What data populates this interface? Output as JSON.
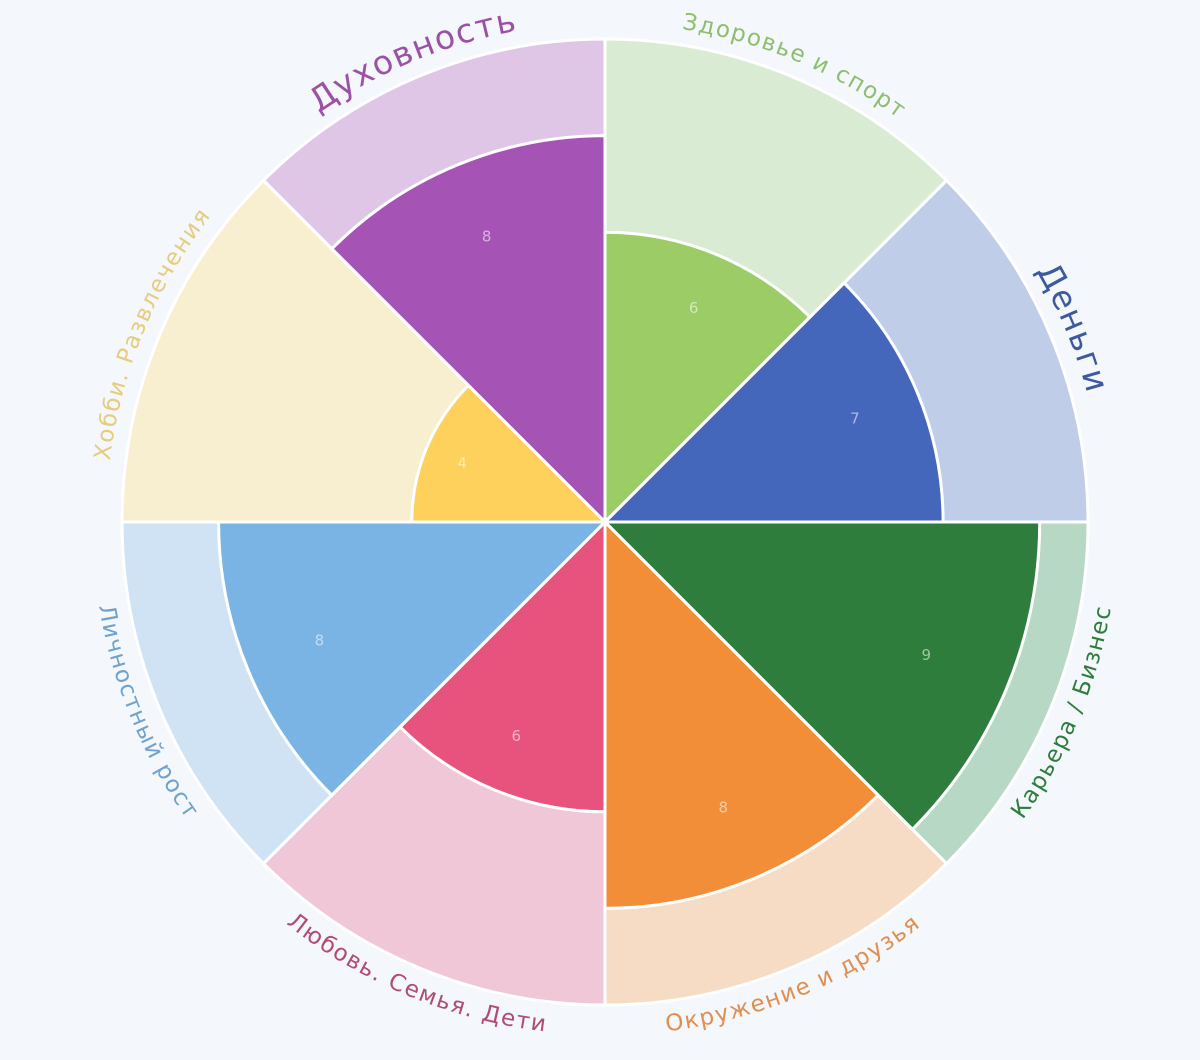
{
  "chart_data": {
    "type": "polar-area",
    "title": "",
    "rmax": 10,
    "sectors": [
      {
        "name": "Здоровье и спорт",
        "value": 6,
        "color": "#9ccc65",
        "bg": "#d9ecd3",
        "label_color": "#8dbf6e"
      },
      {
        "name": "Деньги",
        "value": 7,
        "color": "#4467bb",
        "bg": "#bfcde8",
        "label_color": "#3d5a9e"
      },
      {
        "name": "Карьера / Бизнес",
        "value": 9,
        "color": "#2e7d3c",
        "bg": "#b7d8c4",
        "label_color": "#2e7d3c"
      },
      {
        "name": "Окружение и друзья",
        "value": 8,
        "color": "#f28e38",
        "bg": "#f6dcc5",
        "label_color": "#df8f4f"
      },
      {
        "name": "Любовь. Семья. Дети",
        "value": 6,
        "color": "#e8537d",
        "bg": "#efc7d6",
        "label_color": "#b04d72"
      },
      {
        "name": "Личностный рост",
        "value": 8,
        "color": "#79b4e4",
        "bg": "#cfe3f4",
        "label_color": "#6fa3cd"
      },
      {
        "name": "Хобби. Развлечения",
        "value": 4,
        "color": "#fdd15c",
        "bg": "#f8eed0",
        "label_color": "#e6cc7e"
      },
      {
        "name": "Духовность",
        "value": 8,
        "color": "#a553b5",
        "bg": "#dfc6e6",
        "label_color": "#9b52a4"
      }
    ]
  }
}
